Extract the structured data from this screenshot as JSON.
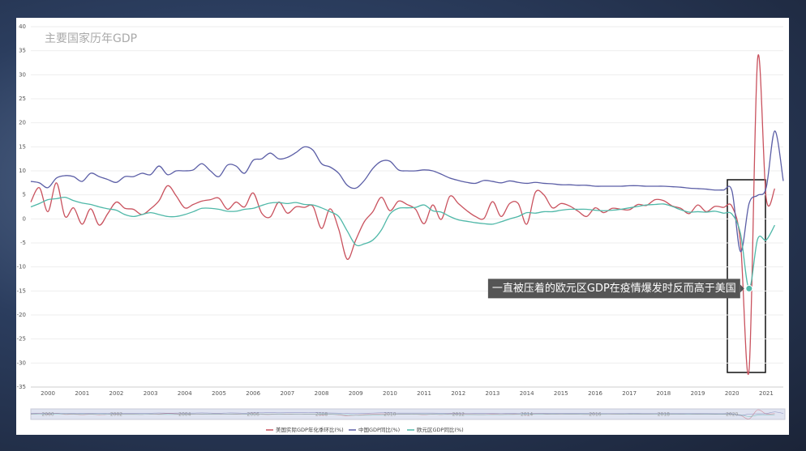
{
  "chart_data": {
    "type": "line",
    "title": "主要国家历年GDP",
    "categories": [
      null,
      null,
      "2000",
      null,
      null,
      null,
      "2001",
      null,
      null,
      null,
      "2002",
      null,
      null,
      null,
      "2003",
      null,
      null,
      null,
      "2004",
      null,
      null,
      null,
      "2005",
      null,
      null,
      null,
      "2006",
      null,
      null,
      null,
      "2007",
      null,
      null,
      null,
      "2008",
      null,
      null,
      null,
      "2009",
      null,
      null,
      null,
      "2010",
      null,
      null,
      null,
      "2011",
      null,
      null,
      null,
      "2012",
      null,
      null,
      null,
      "2013",
      null,
      null,
      null,
      "2014",
      null,
      null,
      null,
      "2015",
      null,
      null,
      null,
      "2016",
      null,
      null,
      null,
      "2017",
      null,
      null,
      null,
      "2018",
      null,
      null,
      null,
      "2019",
      null,
      null,
      null,
      "2020",
      null,
      null,
      null,
      "2021",
      null,
      null
    ],
    "series": [
      {
        "name": "美国实际GDP年化季环比(%)",
        "color": "#c9525e",
        "values": [
          3.5,
          6.5,
          1.5,
          7.5,
          0.5,
          2.3,
          -1.1,
          2.1,
          -1.3,
          1.1,
          3.5,
          2.2,
          2,
          0.9,
          2.1,
          3.8,
          6.9,
          4.8,
          2.3,
          3,
          3.7,
          4,
          4.3,
          2,
          3.5,
          2.5,
          5.4,
          1.2,
          0.4,
          3.5,
          1.2,
          2.5,
          2.4,
          2.6,
          -2,
          2.1,
          -2.1,
          -8.4,
          -4.4,
          -0.6,
          1.5,
          4.5,
          1.7,
          3.7,
          3,
          2,
          -1,
          2.9,
          -0.1,
          4.7,
          3.2,
          1.7,
          0.5,
          0.1,
          3.6,
          0.5,
          3.2,
          3.2,
          -1.1,
          5.5,
          5,
          2.3,
          3.2,
          2.7,
          1.6,
          0.5,
          2.3,
          1.3,
          2.2,
          2,
          1.9,
          3,
          2.8,
          4,
          3.8,
          2.7,
          2.2,
          1.1,
          2.9,
          1.5,
          2.6,
          2.4,
          2.6,
          -5,
          -31.4,
          33.4,
          4.3,
          6.3,
          null
        ]
      },
      {
        "name": "中国GDP同比(%)",
        "color": "#5b5ea6",
        "values": [
          7.8,
          7.5,
          6.5,
          8.5,
          9,
          8.8,
          7.8,
          9.5,
          8.8,
          8.2,
          7.6,
          8.8,
          8.8,
          9.5,
          9.2,
          11,
          9.2,
          10,
          10,
          10.2,
          11.5,
          10,
          8.8,
          11.2,
          11,
          9.5,
          12.2,
          12.5,
          13.7,
          12.5,
          12.8,
          13.8,
          15,
          14.3,
          11.5,
          10.8,
          9.5,
          7,
          6.4,
          8,
          10.5,
          12,
          12,
          10.2,
          10,
          10,
          10.2,
          10,
          9.3,
          8.5,
          8,
          7.6,
          7.4,
          8,
          7.8,
          7.5,
          7.9,
          7.6,
          7.4,
          7.6,
          7.4,
          7.3,
          7.1,
          7.1,
          7,
          7,
          6.8,
          6.8,
          6.8,
          6.8,
          6.9,
          6.9,
          6.8,
          6.8,
          6.8,
          6.7,
          6.6,
          6.4,
          6.3,
          6.2,
          6,
          6,
          5.8,
          -6.8,
          3.2,
          4.9,
          6.5,
          18.3,
          7.9
        ]
      },
      {
        "name": "欧元区GDP同比(%)",
        "color": "#4fb8a8",
        "values": [
          2.5,
          3.2,
          4,
          4.2,
          4.5,
          3.8,
          3.3,
          3,
          2.5,
          2.1,
          1.8,
          0.9,
          0.5,
          0.9,
          1.3,
          0.9,
          0.5,
          0.5,
          0.9,
          1.5,
          2.2,
          2.2,
          2,
          1.6,
          1.6,
          2,
          2.2,
          2.8,
          3.3,
          3.4,
          3.2,
          3.4,
          3,
          2.9,
          2.3,
          1.5,
          0.5,
          -2.5,
          -5.4,
          -5.2,
          -4.4,
          -2.3,
          1,
          2.2,
          2.3,
          2.4,
          2.9,
          1.7,
          1.4,
          0.5,
          -0.2,
          -0.5,
          -0.8,
          -1,
          -1.1,
          -0.6,
          0,
          0.5,
          1.3,
          1.2,
          1.5,
          1.5,
          1.8,
          2,
          2,
          2,
          1.8,
          1.7,
          1.8,
          2,
          2.3,
          2.6,
          2.9,
          3,
          3.1,
          2.6,
          1.9,
          1.4,
          1.5,
          1.4,
          1.6,
          1.2,
          1,
          -3.1,
          -14.5,
          -4.2,
          -4.4,
          -1.3,
          null
        ]
      }
    ],
    "ylim": [
      -35,
      40
    ],
    "yticks": [
      -35,
      -30,
      -25,
      -20,
      -15,
      -10,
      -5,
      0,
      5,
      10,
      15,
      20,
      25,
      30,
      35,
      40
    ],
    "grid": true,
    "annotation": {
      "text": "一直被压着的欧元区GDP在疫情爆发时反而高于美国",
      "series": 2,
      "index": 84
    }
  }
}
